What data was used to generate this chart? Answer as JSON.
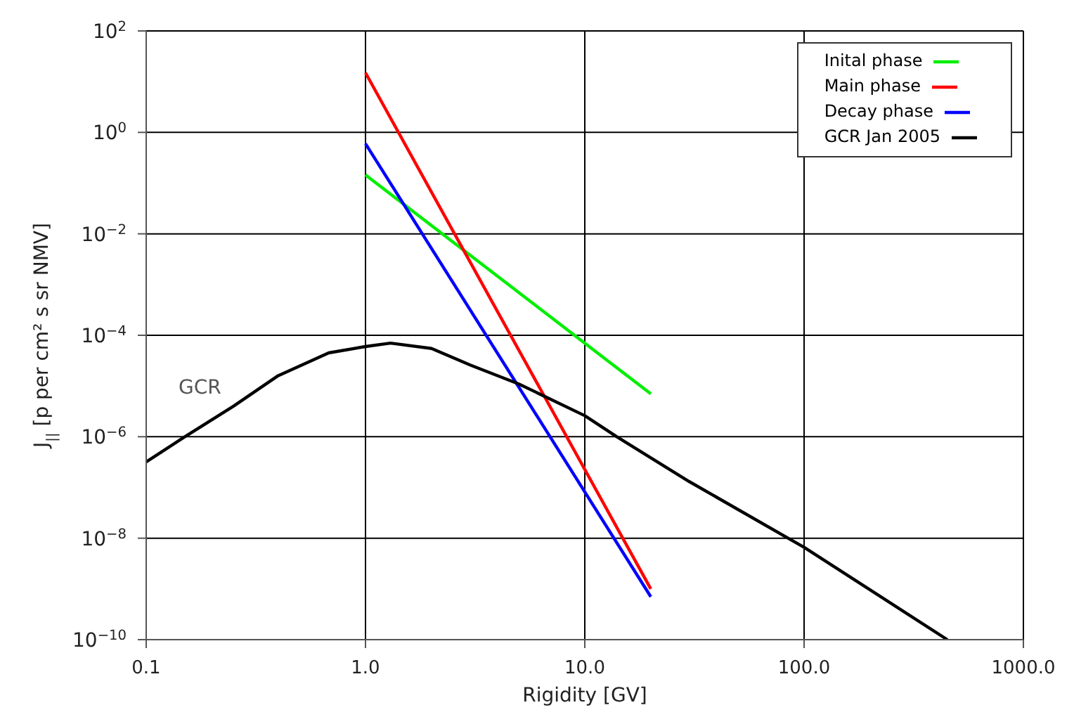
{
  "chart_data": {
    "type": "line",
    "xlabel": "Rigidity   [GV]",
    "ylabel": "J$_{||}$ [p per cm² s sr NMV]",
    "log": "xy",
    "grid": true,
    "legend": "top right",
    "marker": "none",
    "line_style": "solid",
    "xlim": [
      0.1,
      1000
    ],
    "xticks": [
      0.1,
      {
        "value": 1,
        "label": "1.0"
      },
      {
        "value": 10,
        "label": "10.0"
      },
      {
        "value": 100,
        "label": "100.0"
      },
      {
        "value": 1000,
        "label": "1000.0"
      }
    ],
    "ylim": [
      1e-10,
      100
    ],
    "yticks": [
      {
        "value": 1e-10,
        "label": "10$^{−10}$"
      },
      {
        "value": 1e-08,
        "label": "10$^{−8}$"
      },
      {
        "value": 1e-06,
        "label": "10$^{−6}$"
      },
      {
        "value": 0.0001,
        "label": "10$^{−4}$"
      },
      {
        "value": 0.01,
        "label": "10$^{−2}$"
      },
      {
        "value": 1,
        "label": "10$^{0}$"
      },
      {
        "value": 100,
        "label": "10$^{2}$"
      }
    ],
    "series": [
      {
        "name": "Inital phase",
        "color": "#00ee00",
        "x": [
          1,
          20
        ],
        "values": [
          0.145,
          7e-06
        ]
      },
      {
        "name": "Main phase",
        "color": "#ff0000",
        "x": [
          1,
          20
        ],
        "values": [
          15,
          1e-09
        ]
      },
      {
        "name": "Decay phase",
        "color": "#0000ff",
        "x": [
          1,
          20
        ],
        "values": [
          0.6,
          7e-10
        ]
      },
      {
        "name": "GCR Jan 2005",
        "color": "#000000",
        "x": [
          0.1,
          0.15,
          0.25,
          0.4,
          0.68,
          1,
          1.3,
          2,
          3,
          5,
          10,
          14,
          30,
          100,
          450
        ],
        "values": [
          3.2e-07,
          1e-06,
          4e-06,
          1.6e-05,
          4.5e-05,
          6e-05,
          7e-05,
          5.5e-05,
          2.6e-05,
          1.1e-05,
          2.6e-06,
          1e-06,
          1.3e-07,
          6.6e-09,
          1e-10
        ]
      }
    ],
    "annotations": [
      "GCR"
    ]
  }
}
